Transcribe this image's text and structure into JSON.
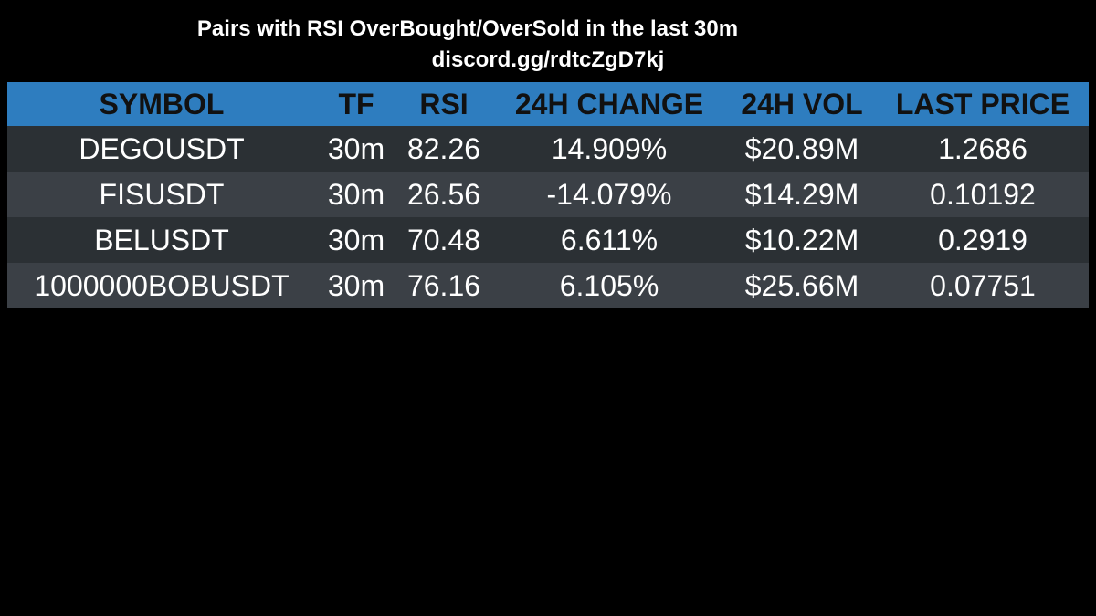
{
  "header": {
    "title": "Pairs with RSI OverBought/OverSold in the last 30m",
    "subtitle": "discord.gg/rdtcZgD7kj"
  },
  "table": {
    "columns": [
      "SYMBOL",
      "TF",
      "RSI",
      "24H CHANGE",
      "24H VOL",
      "LAST PRICE"
    ],
    "rows": [
      {
        "symbol": "DEGOUSDT",
        "tf": "30m",
        "rsi": "82.26",
        "change": "14.909%",
        "vol": "$20.89M",
        "price": "1.2686"
      },
      {
        "symbol": "FISUSDT",
        "tf": "30m",
        "rsi": "26.56",
        "change": "-14.079%",
        "vol": "$14.29M",
        "price": "0.10192"
      },
      {
        "symbol": "BELUSDT",
        "tf": "30m",
        "rsi": "70.48",
        "change": "6.611%",
        "vol": "$10.22M",
        "price": "0.2919"
      },
      {
        "symbol": "1000000BOBUSDT",
        "tf": "30m",
        "rsi": "76.16",
        "change": "6.105%",
        "vol": "$25.66M",
        "price": "0.07751"
      }
    ]
  },
  "colors": {
    "background": "#000000",
    "header_bar": "#2e7dbf",
    "row_dark": "#2b3034",
    "row_light": "#3b4046"
  }
}
